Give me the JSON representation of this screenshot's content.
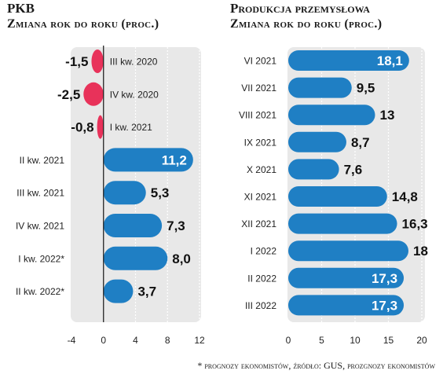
{
  "chart_data": [
    {
      "type": "bar",
      "orientation": "horizontal",
      "title": "PKB",
      "subtitle": "Zmiana rok do roku (proc.)",
      "categories": [
        "III kw. 2020",
        "IV kw. 2020",
        "I kw. 2021",
        "II kw. 2021",
        "III kw. 2021",
        "IV kw. 2021",
        "I kw. 2022*",
        "II kw. 2022*"
      ],
      "values": [
        -1.5,
        -2.5,
        -0.8,
        11.2,
        5.3,
        7.3,
        8.0,
        3.7
      ],
      "value_labels": [
        "-1,5",
        "-2,5",
        "-0,8",
        "11,2",
        "5,3",
        "7,3",
        "8,0",
        "3,7"
      ],
      "xlim": [
        -4,
        12
      ],
      "xticks": [
        -4,
        0,
        4,
        8,
        12
      ],
      "xtick_labels": [
        "-4",
        "0",
        "4",
        "8",
        "12"
      ],
      "grid": "dashed vertical"
    },
    {
      "type": "bar",
      "orientation": "horizontal",
      "title": "Produkcja przemysłowa",
      "subtitle": "Zmiana rok do roku (proc.)",
      "categories": [
        "VI 2021",
        "VII 2021",
        "VIII 2021",
        "IX 2021",
        "X 2021",
        "XI 2021",
        "XII 2021",
        "I 2022",
        "II 2022",
        "III 2022"
      ],
      "values": [
        18.1,
        9.5,
        13,
        8.7,
        7.6,
        14.8,
        16.3,
        18,
        17.3,
        17.3
      ],
      "value_labels": [
        "18,1",
        "9,5",
        "13",
        "8,7",
        "7,6",
        "14,8",
        "16,3",
        "18",
        "17,3",
        "17,3"
      ],
      "xlim": [
        0,
        20
      ],
      "xticks": [
        0,
        5,
        10,
        15,
        20
      ],
      "xtick_labels": [
        "0",
        "5",
        "10",
        "15",
        "20"
      ],
      "grid": "dashed vertical"
    }
  ],
  "colors": {
    "positive": "#1f7fc4",
    "negative": "#e8325a",
    "panel": "#e8e8e8",
    "grid": "#ffffff",
    "zero_line": "#222222"
  },
  "footnote": "* prognozy ekonomistów, źródło: GUS, prozgnozy ekonomistów"
}
